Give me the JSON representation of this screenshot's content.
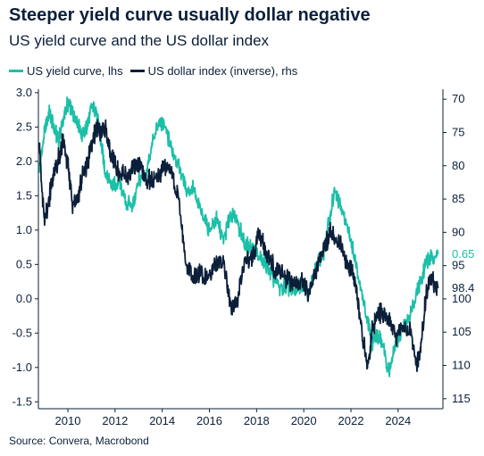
{
  "title": "Steeper yield curve usually dollar negative",
  "subtitle": "US yield curve and the US dollar index",
  "source": "Source: Convera, Macrobond",
  "colors": {
    "yield": "#1cbfa8",
    "dollar": "#0b1f3a",
    "axis": "#0b1f3a"
  },
  "chart_data": {
    "type": "line",
    "legend_position": "top-left",
    "grid": false,
    "x_range": [
      2008.75,
      2025.9
    ],
    "x_ticks": [
      "2010",
      "2012",
      "2014",
      "2016",
      "2018",
      "2020",
      "2022",
      "2024"
    ],
    "y_left": {
      "range": [
        -1.6,
        3.05
      ],
      "ticks": [
        "3.0",
        "2.5",
        "2.0",
        "1.5",
        "1.0",
        "0.5",
        "0.0",
        "-0.5",
        "-1.0",
        "-1.5"
      ]
    },
    "y_right": {
      "range": [
        116.5,
        68.5
      ],
      "inverted": true,
      "ticks": [
        "70",
        "75",
        "80",
        "85",
        "90",
        "95",
        "100",
        "105",
        "110",
        "115"
      ]
    },
    "end_labels": {
      "yield": "0.65",
      "dollar": "98.4"
    },
    "series": [
      {
        "name": "US yield curve, lhs",
        "axis": "left",
        "x": [
          2008.8,
          2009.0,
          2009.2,
          2009.4,
          2009.6,
          2009.8,
          2010.0,
          2010.2,
          2010.4,
          2010.6,
          2010.8,
          2011.0,
          2011.2,
          2011.4,
          2011.6,
          2011.8,
          2012.0,
          2012.2,
          2012.5,
          2012.8,
          2013.0,
          2013.3,
          2013.6,
          2013.9,
          2014.1,
          2014.4,
          2014.7,
          2015.0,
          2015.3,
          2015.6,
          2016.0,
          2016.3,
          2016.6,
          2016.9,
          2017.2,
          2017.5,
          2017.8,
          2018.1,
          2018.4,
          2018.7,
          2019.0,
          2019.3,
          2019.6,
          2019.9,
          2020.2,
          2020.5,
          2020.8,
          2021.1,
          2021.3,
          2021.6,
          2021.9,
          2022.1,
          2022.4,
          2022.7,
          2022.9,
          2023.1,
          2023.3,
          2023.6,
          2023.9,
          2024.2,
          2024.5,
          2024.8,
          2025.0,
          2025.2,
          2025.4,
          2025.7
        ],
        "values": [
          1.9,
          2.4,
          2.7,
          2.5,
          2.3,
          2.6,
          2.85,
          2.7,
          2.6,
          2.4,
          2.5,
          2.8,
          2.75,
          2.3,
          1.8,
          1.7,
          1.65,
          1.7,
          1.35,
          1.4,
          1.75,
          1.75,
          2.3,
          2.6,
          2.5,
          2.2,
          1.95,
          1.6,
          1.6,
          1.3,
          1.0,
          1.15,
          0.85,
          1.25,
          1.1,
          0.8,
          0.75,
          0.6,
          0.5,
          0.3,
          0.15,
          0.2,
          0.05,
          0.25,
          0.05,
          0.45,
          0.6,
          1.2,
          1.55,
          1.3,
          1.0,
          0.7,
          0.2,
          -0.3,
          -0.65,
          -0.55,
          -0.6,
          -1.05,
          -0.65,
          -0.45,
          -0.25,
          0.1,
          0.3,
          0.55,
          0.6,
          0.65
        ]
      },
      {
        "name": "US dollar index (inverse), rhs",
        "axis": "right",
        "x": [
          2008.8,
          2009.0,
          2009.2,
          2009.4,
          2009.6,
          2009.8,
          2010.0,
          2010.2,
          2010.4,
          2010.6,
          2010.8,
          2011.0,
          2011.2,
          2011.4,
          2011.6,
          2011.8,
          2012.0,
          2012.2,
          2012.5,
          2012.8,
          2013.0,
          2013.3,
          2013.6,
          2013.9,
          2014.1,
          2014.4,
          2014.7,
          2015.0,
          2015.3,
          2015.6,
          2016.0,
          2016.3,
          2016.6,
          2016.9,
          2017.2,
          2017.5,
          2017.8,
          2018.1,
          2018.4,
          2018.7,
          2019.0,
          2019.3,
          2019.6,
          2019.9,
          2020.2,
          2020.5,
          2020.8,
          2021.1,
          2021.3,
          2021.6,
          2021.9,
          2022.1,
          2022.4,
          2022.7,
          2022.9,
          2023.1,
          2023.3,
          2023.6,
          2023.9,
          2024.2,
          2024.5,
          2024.8,
          2025.0,
          2025.2,
          2025.4,
          2025.7
        ],
        "values": [
          78,
          88,
          85,
          81,
          79,
          76,
          80,
          86,
          85,
          82,
          80,
          77,
          74,
          75,
          74,
          78,
          80,
          81,
          82,
          80,
          80,
          82,
          82,
          81,
          80,
          81,
          85,
          95,
          97,
          96,
          97,
          94,
          95,
          101,
          100,
          94,
          94,
          90,
          93,
          95,
          96,
          97,
          98,
          97,
          99,
          96,
          93,
          90,
          91,
          92,
          95,
          96,
          103,
          111,
          105,
          102,
          102,
          103,
          106,
          104,
          105,
          110,
          106,
          99,
          97,
          98.4
        ]
      }
    ]
  }
}
